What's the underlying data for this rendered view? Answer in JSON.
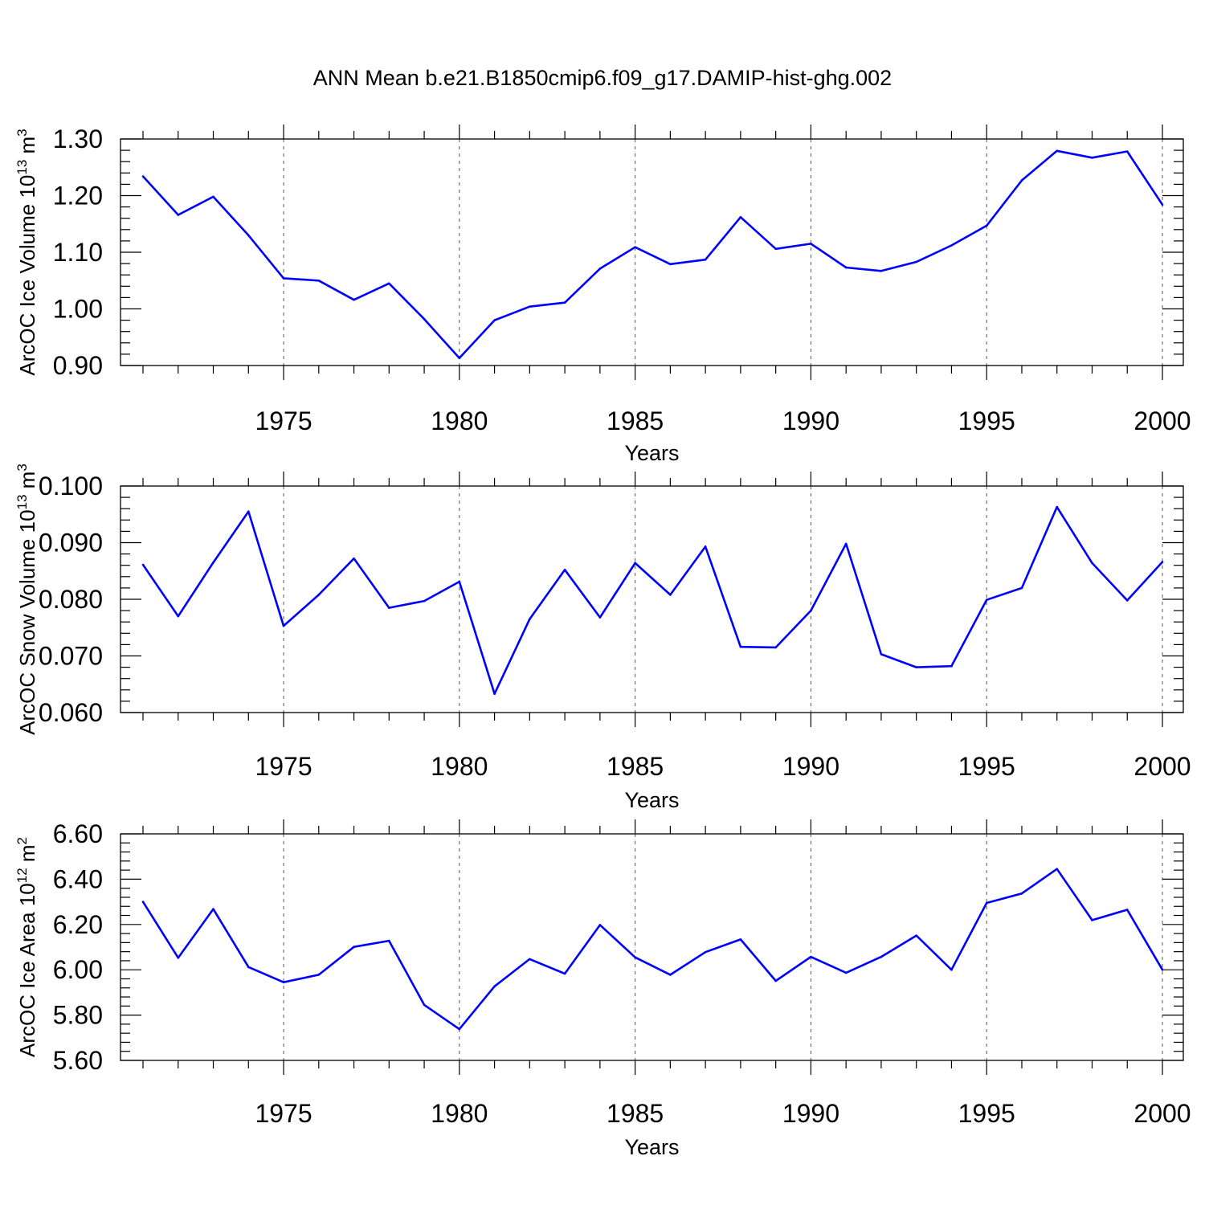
{
  "title": "ANN Mean b.e21.B1850cmip6.f09_g17.DAMIP-hist-ghg.002",
  "colors": {
    "series": "#0000ff",
    "axes": "#000000",
    "grid": "#555555"
  },
  "chart_data": [
    {
      "type": "line",
      "xlabel": "Years",
      "ylabel": {
        "text": "ArcOC Ice Volume 10",
        "exp": "13",
        "unit": " m",
        "unit_exp": "3"
      },
      "xlim": [
        1971,
        2000
      ],
      "ylim": [
        0.9,
        1.3
      ],
      "yticks": [
        0.9,
        1.0,
        1.1,
        1.2,
        1.3
      ],
      "ytick_labels": [
        "0.90",
        "1.00",
        "1.10",
        "1.20",
        "1.30"
      ],
      "xticks": [
        1975,
        1980,
        1985,
        1990,
        1995,
        2000
      ],
      "xtick_labels": [
        "1975",
        "1980",
        "1985",
        "1990",
        "1995",
        "2000"
      ],
      "grid": "vertical dashed at major x ticks",
      "x": [
        1971,
        1972,
        1973,
        1974,
        1975,
        1976,
        1977,
        1978,
        1979,
        1980,
        1981,
        1982,
        1983,
        1984,
        1985,
        1986,
        1987,
        1988,
        1989,
        1990,
        1991,
        1992,
        1993,
        1994,
        1995,
        1996,
        1997,
        1998,
        1999,
        2000
      ],
      "values": [
        1.234,
        1.166,
        1.198,
        1.13,
        1.054,
        1.05,
        1.016,
        1.045,
        0.982,
        0.913,
        0.98,
        1.004,
        1.011,
        1.071,
        1.109,
        1.079,
        1.087,
        1.162,
        1.106,
        1.115,
        1.073,
        1.067,
        1.083,
        1.112,
        1.147,
        1.227,
        1.279,
        1.267,
        1.278,
        1.184
      ]
    },
    {
      "type": "line",
      "xlabel": "Years",
      "ylabel": {
        "text": "ArcOC Snow Volume 10",
        "exp": "13",
        "unit": " m",
        "unit_exp": "3"
      },
      "xlim": [
        1971,
        2000
      ],
      "ylim": [
        0.06,
        0.1
      ],
      "yticks": [
        0.06,
        0.07,
        0.08,
        0.09,
        0.1
      ],
      "ytick_labels": [
        "0.060",
        "0.070",
        "0.080",
        "0.090",
        "0.100"
      ],
      "xticks": [
        1975,
        1980,
        1985,
        1990,
        1995,
        2000
      ],
      "xtick_labels": [
        "1975",
        "1980",
        "1985",
        "1990",
        "1995",
        "2000"
      ],
      "grid": "vertical dashed at major x ticks",
      "x": [
        1971,
        1972,
        1973,
        1974,
        1975,
        1976,
        1977,
        1978,
        1979,
        1980,
        1981,
        1982,
        1983,
        1984,
        1985,
        1986,
        1987,
        1988,
        1989,
        1990,
        1991,
        1992,
        1993,
        1994,
        1995,
        1996,
        1997,
        1998,
        1999,
        2000
      ],
      "values": [
        0.0861,
        0.077,
        0.0865,
        0.0955,
        0.0753,
        0.0808,
        0.0872,
        0.0785,
        0.0797,
        0.0831,
        0.0633,
        0.0765,
        0.0852,
        0.0768,
        0.0864,
        0.0808,
        0.0893,
        0.0716,
        0.0715,
        0.078,
        0.0898,
        0.0703,
        0.068,
        0.0682,
        0.0799,
        0.082,
        0.0963,
        0.0864,
        0.0798,
        0.0866
      ]
    },
    {
      "type": "line",
      "xlabel": "Years",
      "ylabel": {
        "text": "ArcOC Ice Area 10",
        "exp": "12",
        "unit": " m",
        "unit_exp": "2"
      },
      "xlim": [
        1971,
        2000
      ],
      "ylim": [
        5.6,
        6.6
      ],
      "yticks": [
        5.6,
        5.8,
        6.0,
        6.2,
        6.4,
        6.6
      ],
      "ytick_labels": [
        "5.60",
        "5.80",
        "6.00",
        "6.20",
        "6.40",
        "6.60"
      ],
      "xticks": [
        1975,
        1980,
        1985,
        1990,
        1995,
        2000
      ],
      "xtick_labels": [
        "1975",
        "1980",
        "1985",
        "1990",
        "1995",
        "2000"
      ],
      "grid": "vertical dashed at major x ticks",
      "x": [
        1971,
        1972,
        1973,
        1974,
        1975,
        1976,
        1977,
        1978,
        1979,
        1980,
        1981,
        1982,
        1983,
        1984,
        1985,
        1986,
        1987,
        1988,
        1989,
        1990,
        1991,
        1992,
        1993,
        1994,
        1995,
        1996,
        1997,
        1998,
        1999,
        2000
      ],
      "values": [
        6.3,
        6.053,
        6.268,
        6.012,
        5.945,
        5.978,
        6.101,
        6.128,
        5.845,
        5.738,
        5.927,
        6.047,
        5.983,
        6.198,
        6.055,
        5.978,
        6.078,
        6.134,
        5.951,
        6.057,
        5.987,
        6.057,
        6.151,
        6.0,
        6.295,
        6.337,
        6.445,
        6.219,
        6.265,
        6.0
      ]
    }
  ]
}
